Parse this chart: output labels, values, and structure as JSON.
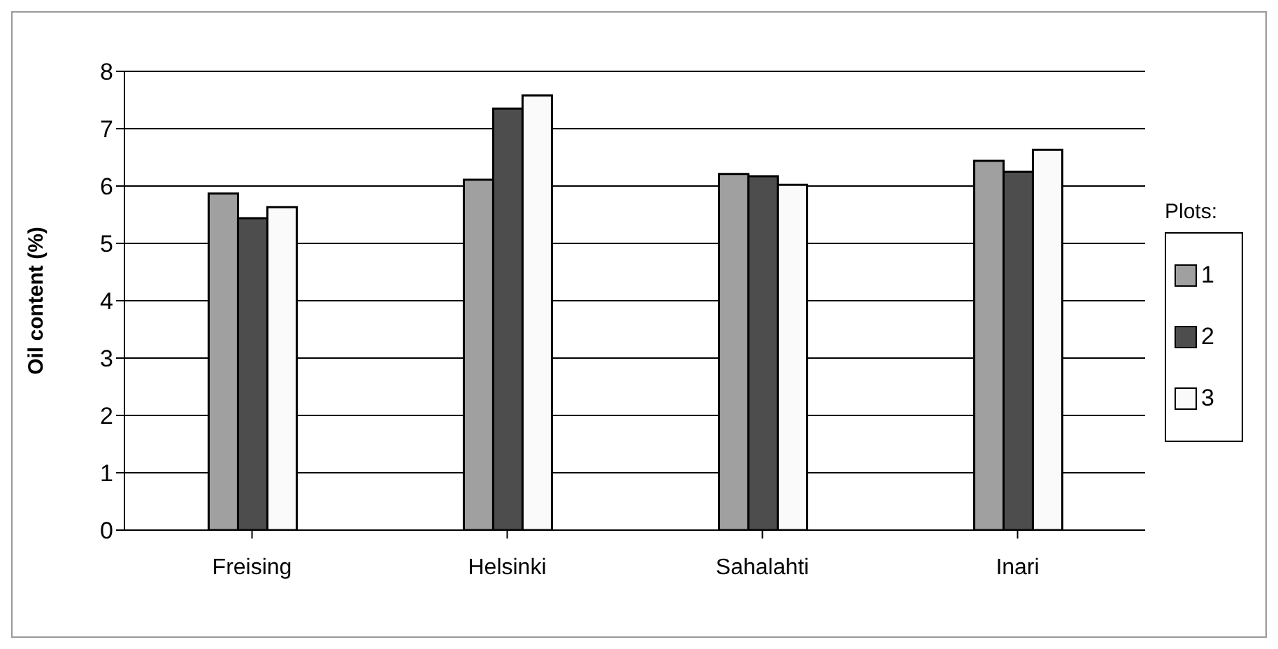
{
  "chart_data": {
    "type": "bar",
    "ylabel": "Oil content (%)",
    "legend_title": "Plots:",
    "categories": [
      "Freising",
      "Helsinki",
      "Sahalahti",
      "Inari"
    ],
    "series": [
      {
        "name": "1",
        "color": "#a0a0a0",
        "values": [
          5.87,
          6.11,
          6.21,
          6.44
        ]
      },
      {
        "name": "2",
        "color": "#4d4d4d",
        "values": [
          5.44,
          7.35,
          6.17,
          6.25
        ]
      },
      {
        "name": "3",
        "color": "#fafafa",
        "values": [
          5.63,
          7.58,
          6.02,
          6.63
        ]
      }
    ],
    "ylim": [
      0,
      8
    ],
    "yticks": [
      0,
      1,
      2,
      3,
      4,
      5,
      6,
      7,
      8
    ],
    "grid": "y",
    "legend": "right"
  }
}
